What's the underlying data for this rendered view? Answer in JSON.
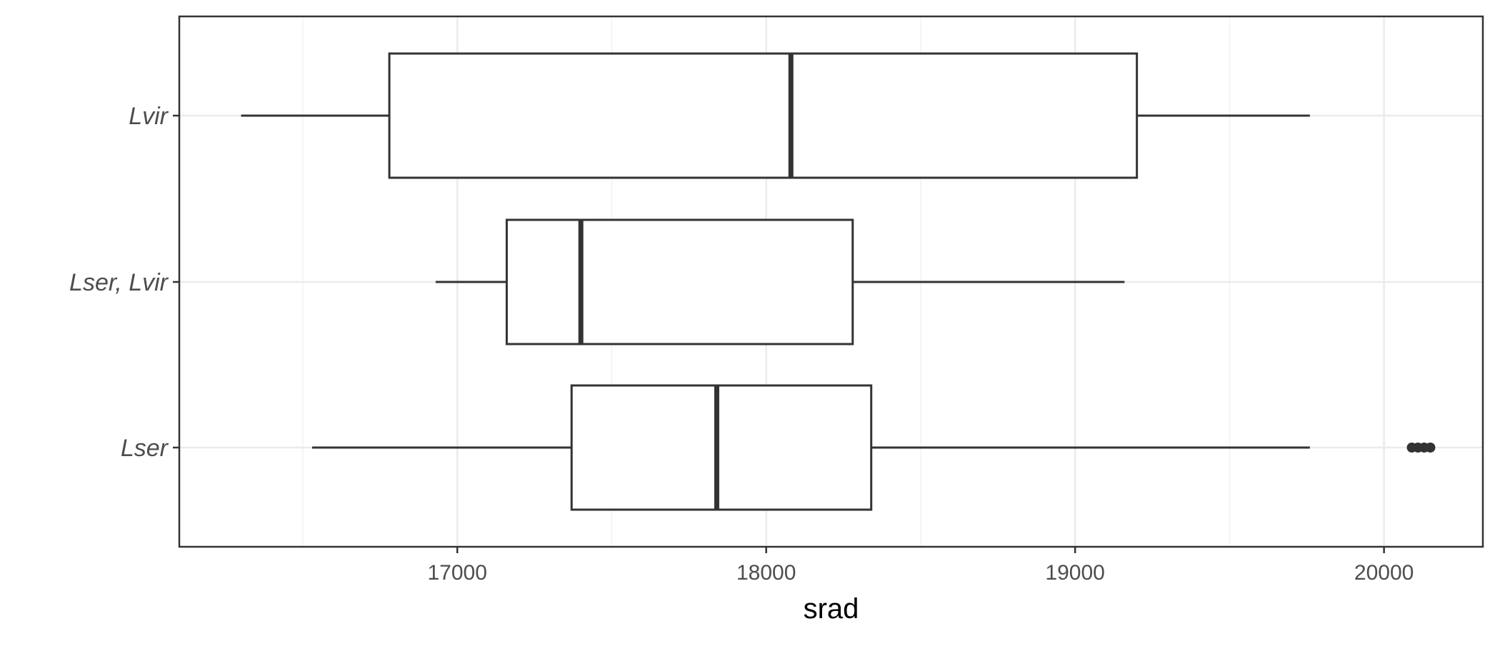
{
  "chart_data": {
    "type": "boxplot",
    "orientation": "horizontal",
    "title": "",
    "xlabel": "srad",
    "ylabel": "",
    "xlim": [
      16100,
      20320
    ],
    "x_ticks": [
      17000,
      18000,
      19000,
      20000
    ],
    "x_tick_labels": [
      "17000",
      "18000",
      "19000",
      "20000"
    ],
    "x_minor_ticks": [
      16500,
      17500,
      18500,
      19500
    ],
    "categories": [
      "Lser",
      "Lser, Lvir",
      "Lvir"
    ],
    "boxes": [
      {
        "category": "Lser",
        "whisker_low": 16530,
        "q1": 17370,
        "median": 17840,
        "q3": 18340,
        "whisker_high": 19760,
        "outliers": [
          20090,
          20110,
          20130,
          20150
        ]
      },
      {
        "category": "Lser, Lvir",
        "whisker_low": 16930,
        "q1": 17160,
        "median": 17400,
        "q3": 18280,
        "whisker_high": 19160
      },
      {
        "category": "Lvir",
        "whisker_low": 16300,
        "q1": 16780,
        "median": 18080,
        "q3": 19200,
        "whisker_high": 19760
      }
    ],
    "grid": true,
    "theme": "bw",
    "colors": {
      "box_fill": "#ffffff",
      "box_stroke": "#333333",
      "grid_major": "#ebebeb",
      "grid_minor": "#f2f2f2",
      "panel_border": "#333333",
      "tick_label": "#4d4d4d",
      "axis_title": "#000000",
      "outlier": "#333333"
    }
  }
}
